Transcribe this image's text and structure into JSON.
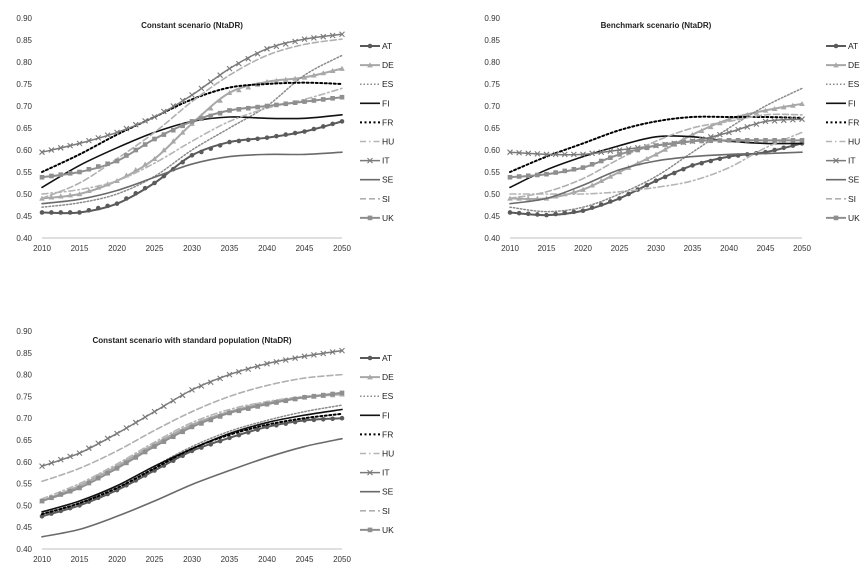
{
  "chart_data": [
    {
      "type": "line",
      "title": "Constant scenario (NtaDR)",
      "x": [
        2010,
        2015,
        2020,
        2025,
        2030,
        2035,
        2040,
        2045,
        2050
      ],
      "xlim": [
        2010,
        2050
      ],
      "ylim": [
        0.4,
        0.9
      ],
      "xticks": [
        "2010",
        "2015",
        "2020",
        "2025",
        "2030",
        "2035",
        "2040",
        "2045",
        "2050"
      ],
      "yticks": [
        "0.40",
        "0.45",
        "0.50",
        "0.55",
        "0.60",
        "0.65",
        "0.70",
        "0.75",
        "0.80",
        "0.85",
        "0.90"
      ],
      "grid": false,
      "legend_position": "right",
      "series": [
        {
          "name": "AT",
          "values": [
            0.458,
            0.458,
            0.478,
            0.525,
            0.588,
            0.618,
            0.628,
            0.642,
            0.665
          ]
        },
        {
          "name": "DE",
          "values": [
            0.49,
            0.5,
            0.53,
            0.58,
            0.66,
            0.73,
            0.755,
            0.765,
            0.785
          ]
        },
        {
          "name": "ES",
          "values": [
            0.47,
            0.48,
            0.5,
            0.54,
            0.6,
            0.65,
            0.7,
            0.77,
            0.815
          ]
        },
        {
          "name": "FI",
          "values": [
            0.515,
            0.565,
            0.605,
            0.64,
            0.665,
            0.675,
            0.672,
            0.672,
            0.68
          ]
        },
        {
          "name": "FR",
          "values": [
            0.55,
            0.59,
            0.635,
            0.675,
            0.715,
            0.742,
            0.75,
            0.753,
            0.75
          ]
        },
        {
          "name": "HU",
          "values": [
            0.5,
            0.51,
            0.53,
            0.57,
            0.62,
            0.665,
            0.695,
            0.715,
            0.74
          ]
        },
        {
          "name": "IT",
          "values": [
            0.595,
            0.615,
            0.64,
            0.675,
            0.725,
            0.785,
            0.83,
            0.852,
            0.863
          ]
        },
        {
          "name": "SE",
          "values": [
            0.478,
            0.488,
            0.508,
            0.538,
            0.568,
            0.585,
            0.59,
            0.59,
            0.595
          ]
        },
        {
          "name": "SI",
          "values": [
            0.49,
            0.525,
            0.58,
            0.64,
            0.71,
            0.77,
            0.815,
            0.84,
            0.852
          ]
        },
        {
          "name": "UK",
          "values": [
            0.538,
            0.55,
            0.575,
            0.625,
            0.665,
            0.69,
            0.7,
            0.71,
            0.72
          ]
        }
      ]
    },
    {
      "type": "line",
      "title": "Benchmark scenario (NtaDR)",
      "x": [
        2010,
        2015,
        2020,
        2025,
        2030,
        2035,
        2040,
        2045,
        2050
      ],
      "xlim": [
        2010,
        2050
      ],
      "ylim": [
        0.4,
        0.9
      ],
      "xticks": [
        "2010",
        "2015",
        "2020",
        "2025",
        "2030",
        "2035",
        "2040",
        "2045",
        "2050"
      ],
      "yticks": [
        "0.40",
        "0.45",
        "0.50",
        "0.55",
        "0.60",
        "0.65",
        "0.70",
        "0.75",
        "0.80",
        "0.85",
        "0.90"
      ],
      "grid": false,
      "legend_position": "right",
      "series": [
        {
          "name": "AT",
          "values": [
            0.458,
            0.452,
            0.462,
            0.49,
            0.53,
            0.565,
            0.585,
            0.595,
            0.615
          ]
        },
        {
          "name": "DE",
          "values": [
            0.49,
            0.49,
            0.51,
            0.55,
            0.59,
            0.635,
            0.67,
            0.69,
            0.705
          ]
        },
        {
          "name": "ES",
          "values": [
            0.47,
            0.46,
            0.47,
            0.5,
            0.54,
            0.595,
            0.65,
            0.7,
            0.74
          ]
        },
        {
          "name": "FI",
          "values": [
            0.515,
            0.555,
            0.585,
            0.61,
            0.63,
            0.63,
            0.62,
            0.615,
            0.615
          ]
        },
        {
          "name": "FR",
          "values": [
            0.55,
            0.585,
            0.615,
            0.645,
            0.665,
            0.675,
            0.675,
            0.675,
            0.673
          ]
        },
        {
          "name": "HU",
          "values": [
            0.5,
            0.5,
            0.5,
            0.505,
            0.515,
            0.53,
            0.56,
            0.605,
            0.64
          ]
        },
        {
          "name": "IT",
          "values": [
            0.595,
            0.59,
            0.59,
            0.6,
            0.61,
            0.62,
            0.64,
            0.665,
            0.67
          ]
        },
        {
          "name": "SE",
          "values": [
            0.478,
            0.49,
            0.52,
            0.555,
            0.575,
            0.585,
            0.59,
            0.592,
            0.595
          ]
        },
        {
          "name": "SI",
          "values": [
            0.49,
            0.505,
            0.535,
            0.58,
            0.62,
            0.65,
            0.665,
            0.68,
            0.68
          ]
        },
        {
          "name": "UK",
          "values": [
            0.538,
            0.545,
            0.56,
            0.59,
            0.61,
            0.62,
            0.622,
            0.622,
            0.622
          ]
        }
      ]
    },
    {
      "type": "line",
      "title": "Constant scenario with standard population (NtaDR)",
      "x": [
        2010,
        2015,
        2020,
        2025,
        2030,
        2035,
        2040,
        2045,
        2050
      ],
      "xlim": [
        2010,
        2050
      ],
      "ylim": [
        0.4,
        0.9
      ],
      "xticks": [
        "2010",
        "2015",
        "2020",
        "2025",
        "2030",
        "2035",
        "2040",
        "2045",
        "2050"
      ],
      "yticks": [
        "0.40",
        "0.45",
        "0.50",
        "0.55",
        "0.60",
        "0.65",
        "0.70",
        "0.75",
        "0.80",
        "0.85",
        "0.90"
      ],
      "grid": false,
      "legend_position": "right",
      "series": [
        {
          "name": "AT",
          "values": [
            0.475,
            0.5,
            0.535,
            0.58,
            0.625,
            0.655,
            0.68,
            0.695,
            0.7
          ]
        },
        {
          "name": "DE",
          "values": [
            0.51,
            0.545,
            0.59,
            0.64,
            0.685,
            0.715,
            0.735,
            0.748,
            0.755
          ]
        },
        {
          "name": "ES",
          "values": [
            0.48,
            0.505,
            0.545,
            0.59,
            0.635,
            0.67,
            0.695,
            0.715,
            0.73
          ]
        },
        {
          "name": "FI",
          "values": [
            0.485,
            0.51,
            0.545,
            0.59,
            0.63,
            0.665,
            0.69,
            0.707,
            0.72
          ]
        },
        {
          "name": "FR",
          "values": [
            0.48,
            0.505,
            0.54,
            0.585,
            0.63,
            0.662,
            0.685,
            0.7,
            0.71
          ]
        },
        {
          "name": "HU",
          "values": [
            0.515,
            0.55,
            0.595,
            0.645,
            0.69,
            0.72,
            0.738,
            0.75,
            0.755
          ]
        },
        {
          "name": "IT",
          "values": [
            0.59,
            0.62,
            0.665,
            0.715,
            0.765,
            0.8,
            0.825,
            0.842,
            0.855
          ]
        },
        {
          "name": "SE",
          "values": [
            0.428,
            0.445,
            0.475,
            0.51,
            0.548,
            0.58,
            0.61,
            0.635,
            0.653
          ]
        },
        {
          "name": "SI",
          "values": [
            0.555,
            0.585,
            0.625,
            0.672,
            0.715,
            0.75,
            0.775,
            0.792,
            0.8
          ]
        },
        {
          "name": "UK",
          "values": [
            0.51,
            0.54,
            0.585,
            0.635,
            0.68,
            0.712,
            0.732,
            0.748,
            0.758
          ]
        }
      ]
    }
  ]
}
